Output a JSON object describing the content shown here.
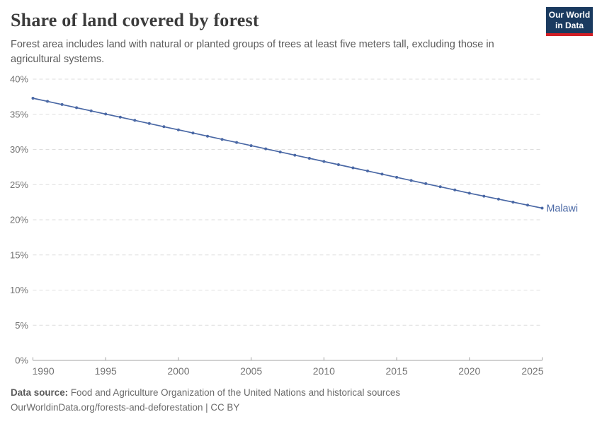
{
  "header": {
    "title": "Share of land covered by forest",
    "subtitle": "Forest area includes land with natural or planted groups of trees at least five meters tall, excluding those in agricultural systems.",
    "logo": {
      "line1": "Our World",
      "line2": "in Data",
      "bg_color": "#1a3a5f",
      "accent_color": "#d21f26"
    }
  },
  "chart_data": {
    "type": "line",
    "title": "Share of land covered by forest",
    "xlabel": "",
    "ylabel": "",
    "xlim": [
      1990,
      2025
    ],
    "ylim": [
      0,
      40
    ],
    "yticks": [
      0,
      5,
      10,
      15,
      20,
      25,
      30,
      35,
      40
    ],
    "ytick_suffix": "%",
    "xticks": [
      1990,
      1995,
      2000,
      2005,
      2010,
      2015,
      2020,
      2025
    ],
    "grid": "horizontal-dashed",
    "legend_position": "end-of-line-label",
    "colors": {
      "gridline": "#dedede",
      "axis": "#a3a3a3",
      "tick_label": "#737373"
    },
    "series": [
      {
        "name": "Malawi",
        "color": "#4a68a5",
        "x": [
          1990,
          1991,
          1992,
          1993,
          1994,
          1995,
          1996,
          1997,
          1998,
          1999,
          2000,
          2001,
          2002,
          2003,
          2004,
          2005,
          2006,
          2007,
          2008,
          2009,
          2010,
          2011,
          2012,
          2013,
          2014,
          2015,
          2016,
          2017,
          2018,
          2019,
          2020,
          2021,
          2022,
          2023,
          2024,
          2025
        ],
        "values": [
          37.29,
          36.84,
          36.39,
          35.94,
          35.49,
          35.04,
          34.59,
          34.14,
          33.69,
          33.24,
          32.79,
          32.34,
          31.89,
          31.44,
          30.99,
          30.54,
          30.09,
          29.64,
          29.19,
          28.74,
          28.29,
          27.84,
          27.39,
          26.94,
          26.49,
          26.04,
          25.59,
          25.14,
          24.69,
          24.24,
          23.78,
          23.36,
          22.93,
          22.51,
          22.08,
          21.66
        ]
      }
    ]
  },
  "footer": {
    "source_label": "Data source:",
    "source_text": "Food and Agriculture Organization of the United Nations and historical sources",
    "link_text": "OurWorldinData.org/forests-and-deforestation",
    "separator": "|",
    "license_text": "CC BY"
  }
}
